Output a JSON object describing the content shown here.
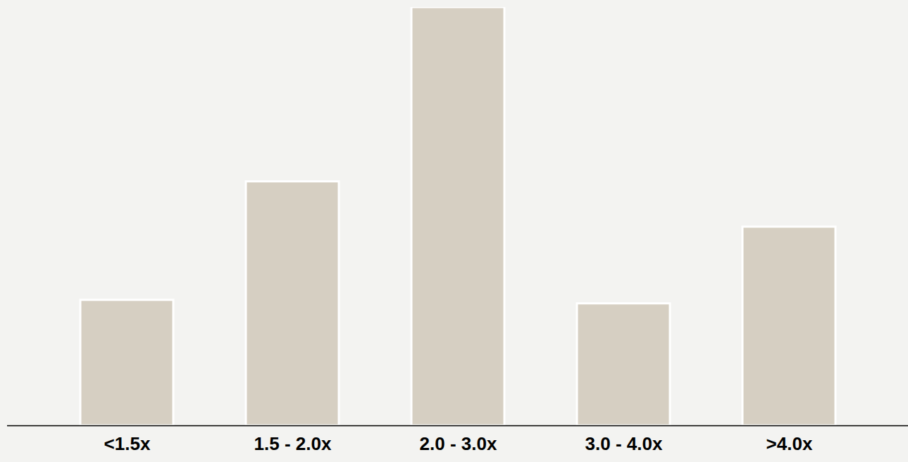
{
  "chart_data": {
    "type": "bar",
    "categories": [
      "<1.5x",
      "1.5 - 2.0x",
      "2.0 - 3.0x",
      "3.0 - 4.0x",
      ">4.0x"
    ],
    "values": [
      18,
      35,
      60,
      17.5,
      28.5
    ],
    "color": "#d6cfc2",
    "ylim": [
      0,
      60
    ],
    "grid": false,
    "tick_labels": "x"
  }
}
